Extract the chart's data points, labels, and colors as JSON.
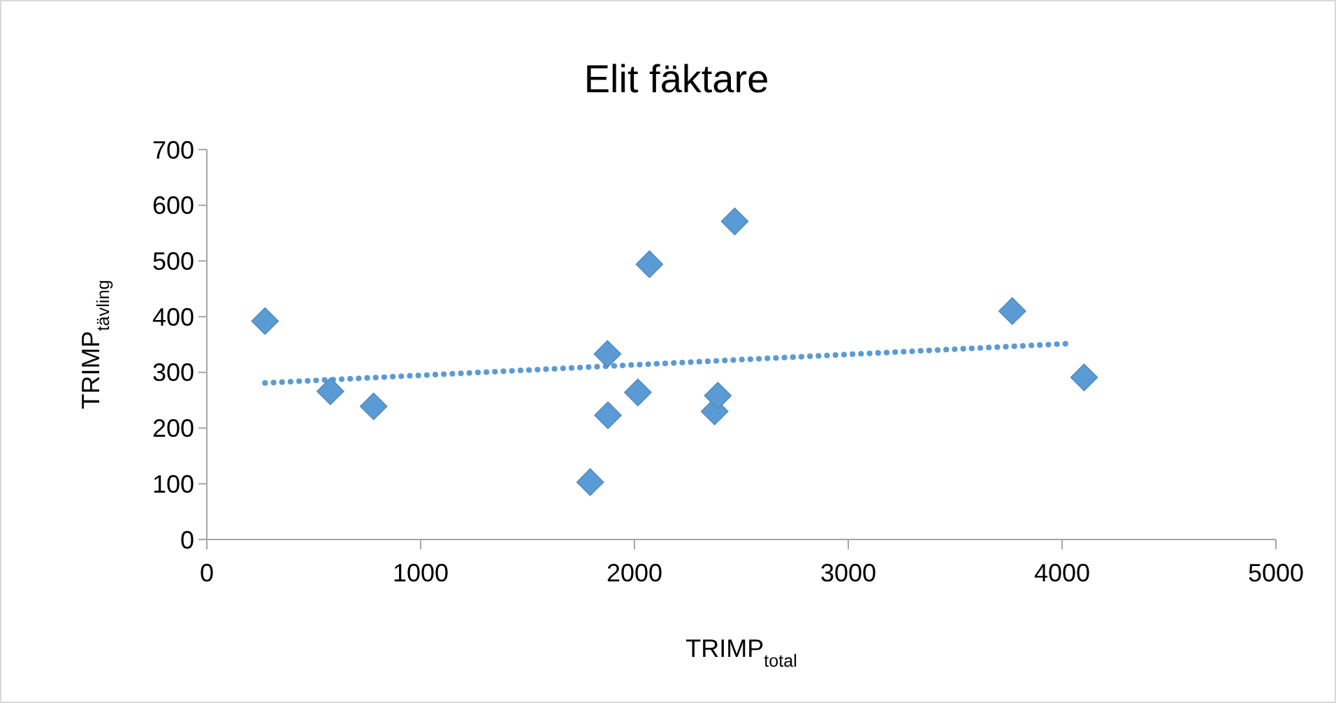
{
  "chart_data": {
    "type": "scatter",
    "title": "Elit fäktare",
    "xlabel": "TRIMP$_{total}$",
    "ylabel": "TRIMP$_{tävling}$",
    "xlim": [
      0,
      5000
    ],
    "xticks": [
      0,
      1000,
      2000,
      3000,
      4000,
      5000
    ],
    "ylim": [
      0,
      700
    ],
    "yticks": [
      0,
      100,
      200,
      300,
      400,
      500,
      600,
      700
    ],
    "grid": false,
    "series": [
      {
        "marker": "diamond",
        "color": "#5b9bd5",
        "x": [
          272,
          578,
          780,
          1793,
          1874,
          1876,
          2016,
          2070,
          2375,
          2390,
          2469,
          3767,
          4103
        ],
        "values": [
          392,
          266,
          239,
          103,
          333,
          223,
          264,
          494,
          230,
          258,
          571,
          410,
          291
        ]
      },
      {
        "type": "line",
        "line_style": "dotted",
        "marker": "none",
        "color": "#5b9bd5",
        "x": [
          272,
          4052
        ],
        "values": [
          281,
          352
        ]
      }
    ]
  }
}
